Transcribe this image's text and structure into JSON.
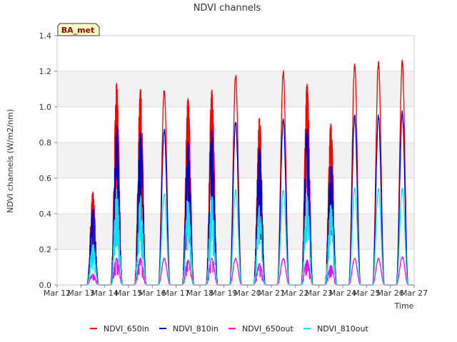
{
  "chart_data": {
    "type": "line",
    "title": "NDVI channels",
    "xlabel": "Time",
    "ylabel": "NDVI channels (W/m2/nm)",
    "ylim": [
      0,
      1.4
    ],
    "xlim": [
      12,
      27
    ],
    "y_ticks": [
      "0.0",
      "0.2",
      "0.4",
      "0.6",
      "0.8",
      "1.0",
      "1.2",
      "1.4"
    ],
    "x_ticks": [
      "Mar 12",
      "Mar 13",
      "Mar 14",
      "Mar 15",
      "Mar 16",
      "Mar 17",
      "Mar 18",
      "Mar 19",
      "Mar 20",
      "Mar 21",
      "Mar 22",
      "Mar 23",
      "Mar 24",
      "Mar 25",
      "Mar 26",
      "Mar 27"
    ],
    "site_label": "BA_met",
    "day_starts": [
      13,
      14,
      15,
      16,
      17,
      18,
      19,
      20,
      21,
      22,
      23,
      24,
      25,
      26
    ],
    "series": [
      {
        "name": "NDVI_650in",
        "color": "#ff0000",
        "daily_peaks": [
          0.52,
          1.13,
          1.1,
          1.11,
          1.05,
          1.1,
          1.19,
          0.94,
          1.21,
          1.13,
          0.91,
          1.25,
          1.27,
          1.27
        ]
      },
      {
        "name": "NDVI_810in",
        "color": "#0000cc",
        "daily_peaks": [
          0.43,
          0.9,
          0.86,
          0.88,
          0.81,
          0.87,
          0.93,
          0.77,
          0.94,
          0.88,
          0.7,
          0.96,
          0.96,
          0.98
        ]
      },
      {
        "name": "NDVI_650out",
        "color": "#ff00ff",
        "daily_peaks": [
          0.06,
          0.15,
          0.15,
          0.15,
          0.14,
          0.15,
          0.15,
          0.12,
          0.15,
          0.14,
          0.11,
          0.15,
          0.15,
          0.16
        ]
      },
      {
        "name": "NDVI_810out",
        "color": "#00e5ee",
        "daily_peaks": [
          0.23,
          0.54,
          0.5,
          0.52,
          0.47,
          0.5,
          0.54,
          0.45,
          0.54,
          0.5,
          0.45,
          0.55,
          0.55,
          0.55
        ]
      }
    ]
  }
}
